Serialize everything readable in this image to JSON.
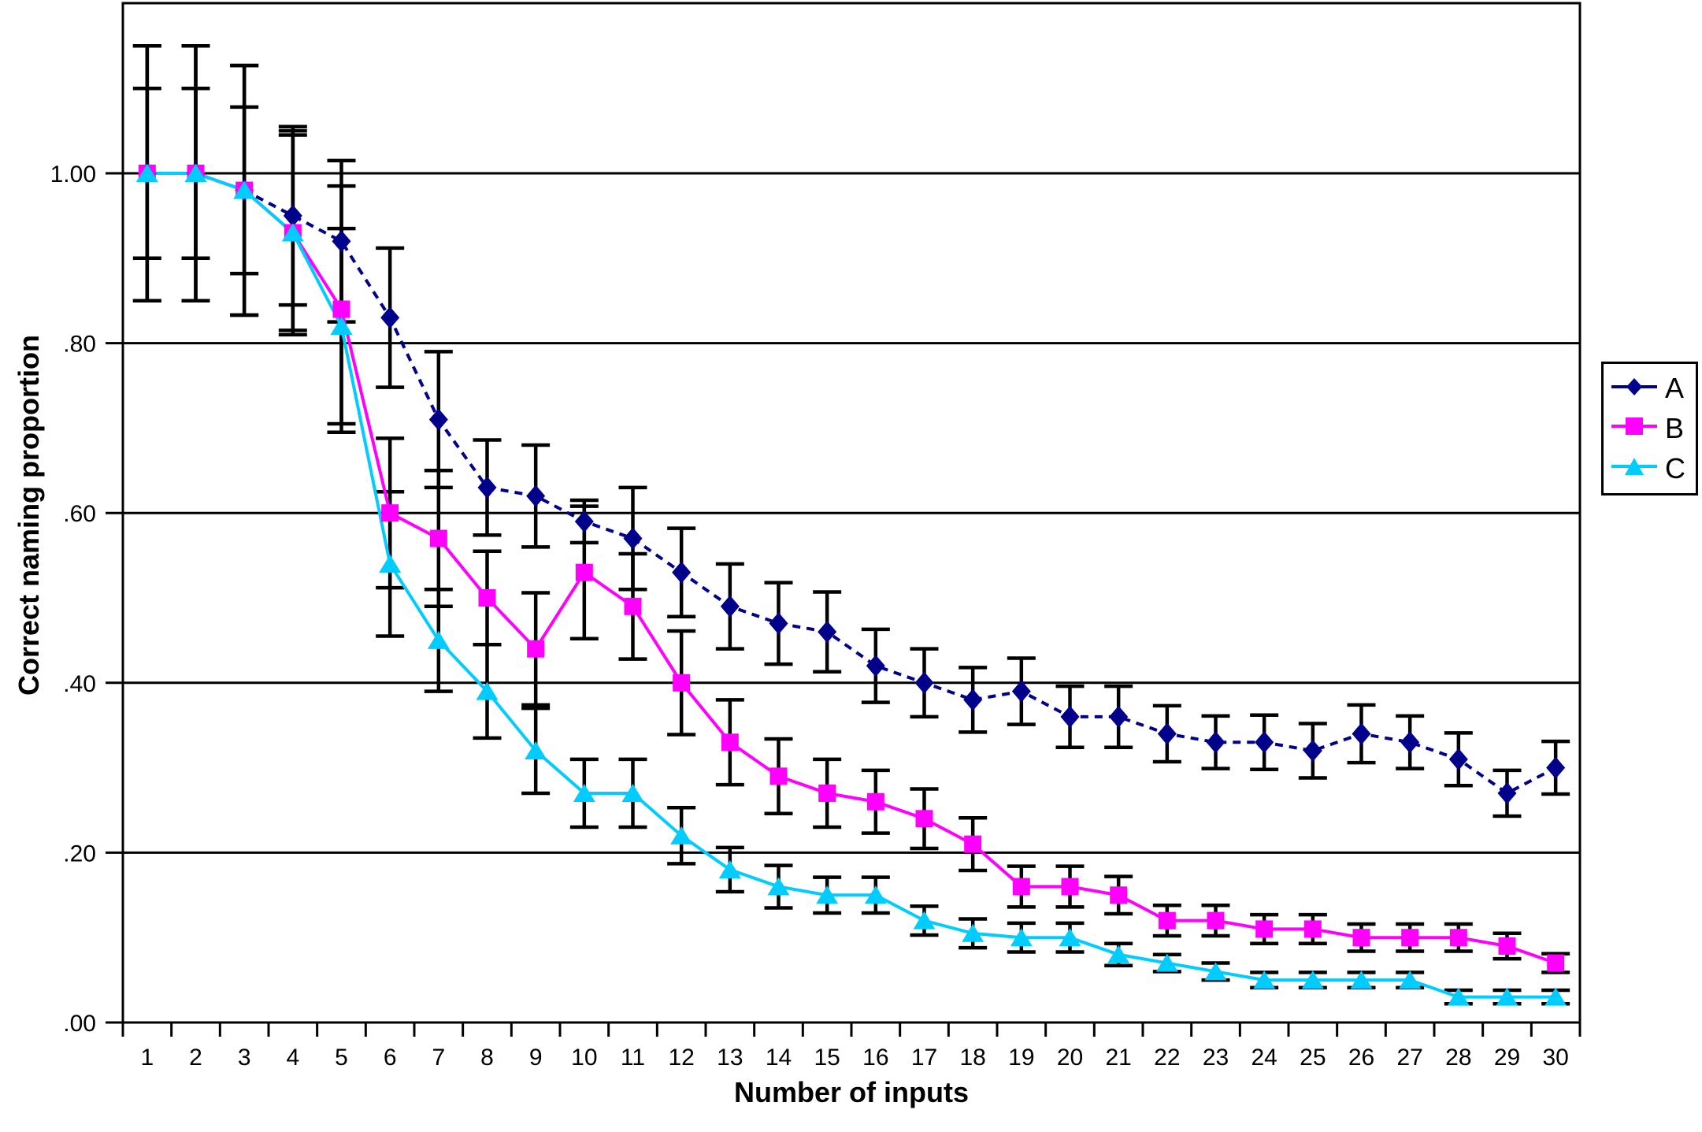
{
  "chart_data": {
    "type": "line",
    "title": "",
    "xlabel": "Number of inputs",
    "ylabel": "Correct naming proportion",
    "x": [
      1,
      2,
      3,
      4,
      5,
      6,
      7,
      8,
      9,
      10,
      11,
      12,
      13,
      14,
      15,
      16,
      17,
      18,
      19,
      20,
      21,
      22,
      23,
      24,
      25,
      26,
      27,
      28,
      29,
      30
    ],
    "ylim": [
      0,
      1.2
    ],
    "ytick_values": [
      1.0,
      0.8,
      0.6,
      0.4,
      0.2,
      0.0
    ],
    "ytick_labels": [
      "1.00",
      ".80",
      ".60",
      ".40",
      ".20",
      ".00"
    ],
    "grid": "horizontal",
    "error_bars": true,
    "error_bar_color": "#000000",
    "legend_position": "right",
    "series": [
      {
        "name": "A",
        "color": "#00008B",
        "marker": "diamond",
        "line": "dashed",
        "values": [
          1.0,
          1.0,
          0.98,
          0.95,
          0.92,
          0.83,
          0.71,
          0.63,
          0.62,
          0.59,
          0.57,
          0.53,
          0.49,
          0.47,
          0.46,
          0.42,
          0.4,
          0.38,
          0.39,
          0.36,
          0.36,
          0.34,
          0.33,
          0.33,
          0.32,
          0.34,
          0.33,
          0.31,
          0.27,
          0.3
        ],
        "errors": [
          0.15,
          0.15,
          0.147,
          0.105,
          0.095,
          0.082,
          0.08,
          0.056,
          0.06,
          0.025,
          0.06,
          0.052,
          0.05,
          0.048,
          0.047,
          0.043,
          0.04,
          0.038,
          0.039,
          0.036,
          0.036,
          0.033,
          0.031,
          0.032,
          0.032,
          0.034,
          0.031,
          0.031,
          0.027,
          0.031
        ]
      },
      {
        "name": "B",
        "color": "#FF00FF",
        "marker": "square",
        "line": "solid",
        "values": [
          1.0,
          1.0,
          0.98,
          0.93,
          0.84,
          0.6,
          0.57,
          0.5,
          0.44,
          0.53,
          0.49,
          0.4,
          0.33,
          0.29,
          0.27,
          0.26,
          0.24,
          0.21,
          0.16,
          0.16,
          0.15,
          0.12,
          0.12,
          0.11,
          0.11,
          0.1,
          0.1,
          0.1,
          0.09,
          0.07
        ],
        "errors": [
          0.1,
          0.1,
          0.098,
          0.115,
          0.145,
          0.088,
          0.08,
          0.055,
          0.066,
          0.078,
          0.062,
          0.061,
          0.05,
          0.044,
          0.04,
          0.037,
          0.035,
          0.031,
          0.024,
          0.024,
          0.022,
          0.018,
          0.018,
          0.017,
          0.017,
          0.016,
          0.016,
          0.016,
          0.015,
          0.011
        ]
      },
      {
        "name": "C",
        "color": "#00CCFF",
        "marker": "triangle",
        "line": "solid",
        "values": [
          1.0,
          1.0,
          0.98,
          0.93,
          0.82,
          0.54,
          0.45,
          0.39,
          0.32,
          0.27,
          0.27,
          0.22,
          0.18,
          0.16,
          0.15,
          0.15,
          0.12,
          0.105,
          0.1,
          0.1,
          0.08,
          0.07,
          0.06,
          0.05,
          0.05,
          0.05,
          0.05,
          0.03,
          0.03,
          0.03
        ],
        "errors": [
          0.15,
          0.15,
          0.147,
          0.12,
          0.115,
          0.085,
          0.06,
          0.055,
          0.05,
          0.04,
          0.04,
          0.033,
          0.026,
          0.025,
          0.021,
          0.021,
          0.017,
          0.017,
          0.017,
          0.017,
          0.013,
          0.01,
          0.01,
          0.009,
          0.009,
          0.009,
          0.009,
          0.008,
          0.008,
          0.008
        ]
      }
    ]
  }
}
